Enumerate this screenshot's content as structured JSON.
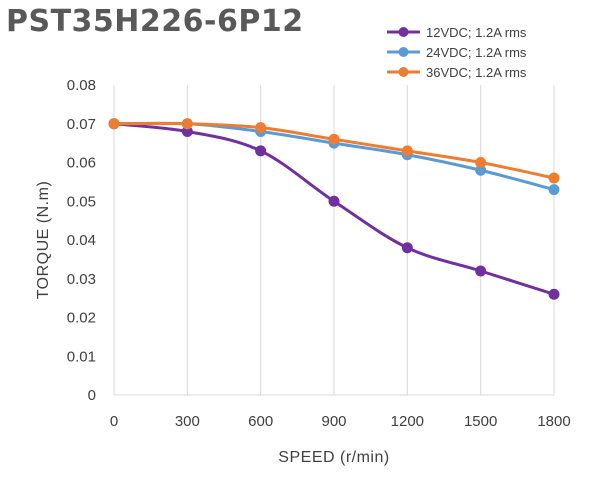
{
  "chart_data": {
    "type": "line",
    "title": "PST35H226-6P12",
    "xlabel": "SPEED (r/min)",
    "ylabel": "TORQUE (N.m)",
    "x": [
      0,
      300,
      600,
      900,
      1200,
      1500,
      1800
    ],
    "x_tick_labels": [
      "0",
      "300",
      "600",
      "900",
      "1200",
      "1500",
      "1800"
    ],
    "y_tick_labels": [
      "0",
      "0.01",
      "0.02",
      "0.03",
      "0.04",
      "0.05",
      "0.06",
      "0.07",
      "0.08"
    ],
    "xlim": [
      0,
      1800
    ],
    "ylim": [
      0,
      0.08
    ],
    "grid": "vertical",
    "legend_position": "top-right",
    "series": [
      {
        "name": "12VDC; 1.2A rms",
        "color": "#7030A0",
        "values": [
          0.07,
          0.068,
          0.063,
          0.05,
          0.038,
          0.032,
          0.026
        ]
      },
      {
        "name": "24VDC; 1.2A rms",
        "color": "#5B9BD5",
        "values": [
          0.07,
          0.07,
          0.068,
          0.065,
          0.062,
          0.058,
          0.053
        ]
      },
      {
        "name": "36VDC; 1.2A rms",
        "color": "#ED7D31",
        "values": [
          0.07,
          0.07,
          0.069,
          0.066,
          0.063,
          0.06,
          0.056
        ]
      }
    ]
  }
}
